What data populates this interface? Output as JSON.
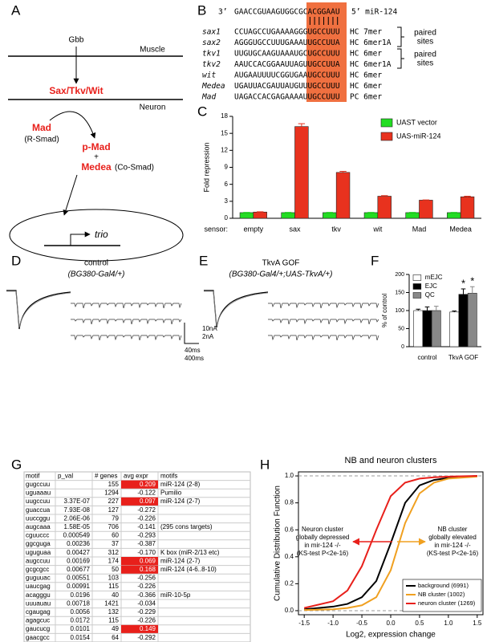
{
  "panel_labels": [
    "A",
    "B",
    "C",
    "D",
    "E",
    "F",
    "G",
    "H"
  ],
  "panel_a": {
    "ligand": "Gbb",
    "top_membrane": "Muscle",
    "bottom_membrane": "Neuron",
    "receptors": "Sax/Tkv/Wit",
    "r_smad": "Mad",
    "r_smad_note": "(R-Smad)",
    "p_smad": "p-Mad",
    "plus": "+",
    "co_smad": "Medea",
    "co_smad_note": "(Co-Smad)",
    "gene": "trio"
  },
  "panel_b": {
    "mirna_3": "3’",
    "mirna_seq": "GAACCGUAAGUGGCGCACGGAAU",
    "mirna_5": "5’ miR-124",
    "rows": [
      {
        "gene": "sax1",
        "seq": "CCUAGCCUGAAAAGGGUGCCUUU",
        "site": "HC 7mer"
      },
      {
        "gene": "sax2",
        "seq": "AGGGUGCCUUUGAAAUUGCCUUA",
        "site": "HC 6mer1A"
      },
      {
        "gene": "tkv1",
        "seq": "UUGUGCAAGUAAAUGCUGCCUUU",
        "site": "HC 6mer"
      },
      {
        "gene": "tkv2",
        "seq": "AAUCCACGGAAUUAGUUGCCUUA",
        "site": "HC 6mer1A"
      },
      {
        "gene": "wit",
        "seq": "AUGAAUUUUCGGUGAAUGCCUUU",
        "site": "HC 6mer"
      },
      {
        "gene": "Medea",
        "seq": "UGAUUACGAUUAUGUUUGCCUUU",
        "site": "HC 6mer"
      },
      {
        "gene": "Mad",
        "seq": "UAGACCACGAGAAAAUUGCCUUU",
        "site": "PC 6mer"
      }
    ],
    "brackets": [
      [
        "paired",
        "sites"
      ],
      [
        "paired",
        "sites"
      ]
    ]
  },
  "panel_d": {
    "title": "control",
    "genotype": "(BG380-Gal4/+)"
  },
  "panel_e": {
    "title": "TkvA GOF",
    "genotype": "(BG380-Gal4/+;UAS-TkvA/+)"
  },
  "scale_bar": {
    "current": [
      "10nA",
      "2nA"
    ],
    "time": [
      "40ms",
      "400ms"
    ]
  },
  "chart_data": [
    {
      "type": "bar",
      "ylabel": "Fold repression",
      "xlabel": "sensor:",
      "categories": [
        "empty",
        "sax",
        "tkv",
        "wit",
        "Mad",
        "Medea"
      ],
      "series": [
        {
          "name": "UAST vector",
          "color": "#22dd22",
          "values": [
            1.0,
            1.0,
            1.0,
            1.0,
            1.0,
            1.0
          ],
          "errors": [
            0.05,
            0.05,
            0.05,
            0.05,
            0.05,
            0.05
          ]
        },
        {
          "name": "UAS-miR-124",
          "color": "#e8321e",
          "values": [
            1.1,
            16.2,
            8.1,
            3.9,
            3.2,
            3.8
          ],
          "errors": [
            0.05,
            0.5,
            0.2,
            0.1,
            0.05,
            0.1
          ]
        }
      ],
      "ylim": [
        0,
        18
      ],
      "yticks": [
        0,
        3,
        6,
        9,
        12,
        15,
        18
      ],
      "legend": "upper right"
    },
    {
      "type": "bar",
      "ylabel": "% of control",
      "categories": [
        "control",
        "TkvA GOF"
      ],
      "series": [
        {
          "name": "mEJC",
          "color": "#ffffff",
          "values": [
            100,
            96
          ],
          "errors": [
            4,
            3
          ],
          "significance": [
            null,
            null
          ]
        },
        {
          "name": "EJC",
          "color": "#000000",
          "values": [
            100,
            145
          ],
          "errors": [
            10,
            15
          ],
          "significance": [
            null,
            "*"
          ]
        },
        {
          "name": "QC",
          "color": "#888888",
          "values": [
            100,
            148
          ],
          "errors": [
            12,
            18
          ],
          "significance": [
            null,
            "*"
          ]
        }
      ],
      "ylim": [
        0,
        200
      ],
      "yticks": [
        0,
        50,
        100,
        150,
        200
      ],
      "legend": "upper left"
    },
    {
      "type": "line",
      "title": "NB and neuron clusters",
      "xlabel": "Log2, expression change",
      "ylabel": "Cumulative Distribution Function",
      "x": [
        -1.5,
        -1.0,
        -0.75,
        -0.5,
        -0.25,
        0.0,
        0.25,
        0.5,
        0.75,
        1.0,
        1.5
      ],
      "series": [
        {
          "name": "background (6991)",
          "color": "#000000",
          "values": [
            0.01,
            0.03,
            0.05,
            0.1,
            0.22,
            0.5,
            0.8,
            0.93,
            0.97,
            0.985,
            1.0
          ]
        },
        {
          "name": "NB cluster (1002)",
          "color": "#f0a020",
          "values": [
            0.005,
            0.01,
            0.02,
            0.04,
            0.1,
            0.3,
            0.65,
            0.87,
            0.95,
            0.98,
            0.995
          ]
        },
        {
          "name": "neuron cluster (1269)",
          "color": "#e8201b",
          "values": [
            0.02,
            0.07,
            0.15,
            0.33,
            0.6,
            0.85,
            0.95,
            0.98,
            0.99,
            0.995,
            1.0
          ]
        }
      ],
      "xlim": [
        -1.6,
        1.6
      ],
      "xticks": [
        -1.5,
        {
          "value": -1,
          "label": "-1.0"
        },
        -0.5,
        {
          "value": 0,
          "label": "0.0"
        },
        0.5,
        {
          "value": 1,
          "label": "1.0"
        },
        1.5
      ],
      "ylim": [
        -0.03,
        1.03
      ],
      "yticks": [
        {
          "value": 0,
          "label": "0.0"
        },
        0.2,
        0.4,
        0.6,
        0.8,
        {
          "value": 1,
          "label": "1.0"
        }
      ],
      "reference_lines": [
        0,
        1
      ],
      "annotations": [
        {
          "lines": [
            "Neuron cluster",
            "globally depressed",
            "in mir-124 -/-",
            "(KS-test P<2e-16)"
          ],
          "color": "#e8201b"
        },
        {
          "lines": [
            "NB cluster",
            "globally elevated",
            "in mir-124 -/-",
            "(KS-test P<2e-16)"
          ],
          "color": "#f0a020"
        }
      ],
      "legend": "lower right"
    }
  ],
  "table": {
    "header": [
      "motif",
      "p_val",
      "# genes",
      "avg expr",
      "motifs"
    ],
    "rows": [
      [
        "gugccuu",
        null,
        "155",
        "0.209",
        "miR-124 (2-8)"
      ],
      [
        "uguaaau",
        null,
        "1294",
        "-0.122",
        "Pumilio"
      ],
      [
        "uugccuu",
        "3.37E-07",
        "227",
        "0.097",
        "miR-124 (2-7)"
      ],
      [
        "guaccua",
        "7.93E-08",
        "127",
        "-0.272",
        null
      ],
      [
        "uuccggu",
        "2.06E-06",
        "79",
        "-0.226",
        null
      ],
      [
        "augcaaa",
        "1.58E-05",
        "706",
        "-0.141",
        "(295 cons targets)"
      ],
      [
        "cguuccc",
        "0.000549",
        "60",
        "-0.293",
        null
      ],
      [
        "ggcguga",
        "0.00236",
        "37",
        "-0.387",
        null
      ],
      [
        "uguguaa",
        "0.00427",
        "312",
        "-0.170",
        "K box (miR-2/13 etc)"
      ],
      [
        "augccuu",
        "0.00169",
        "174",
        "0.069",
        "miR-124 (2-7)"
      ],
      [
        "gcgcgcc",
        "0.00677",
        "50",
        "0.168",
        "miR-124 (4-6..8-10)"
      ],
      [
        "guguuac",
        "0.00551",
        "103",
        "-0.256",
        null
      ],
      [
        "uaucgag",
        "0.00991",
        "115",
        "-0.226",
        null
      ],
      [
        "acagggu",
        "0.0196",
        "40",
        "-0.366",
        "miR-10-5p"
      ],
      [
        "uuuauau",
        "0.00718",
        "1421",
        "-0.034",
        null
      ],
      [
        "cgaugag",
        "0.0056",
        "132",
        "-0.229",
        null
      ],
      [
        "agagcuc",
        "0.0172",
        "115",
        "-0.226",
        null
      ],
      [
        "gaucucg",
        "0.0101",
        "49",
        "0.149",
        null
      ],
      [
        "gaacgcc",
        "0.0154",
        "64",
        "-0.292",
        null
      ]
    ]
  }
}
